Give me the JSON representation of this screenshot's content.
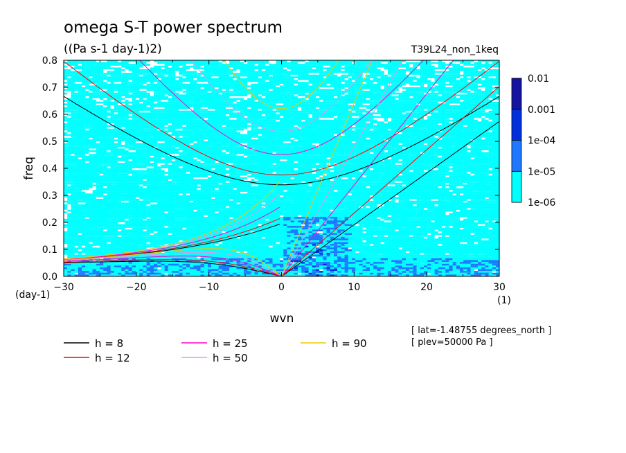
{
  "chart_data": {
    "type": "heatmap",
    "title": "omega S-T power spectrum",
    "subtitle": "((Pa s-1 day-1)2)",
    "run_label": "T39L24_non_1keq",
    "xlabel": "wvn",
    "ylabel": "freq",
    "x_unit": "(1)",
    "y_unit": "(day-1)",
    "xlim": [
      -30,
      30
    ],
    "ylim": [
      0,
      0.8
    ],
    "xticks": [
      -30,
      -20,
      -10,
      0,
      10,
      20,
      30
    ],
    "yticks": [
      0.0,
      0.1,
      0.2,
      0.3,
      0.4,
      0.5,
      0.6,
      0.7,
      0.8
    ],
    "colorbar": {
      "levels": [
        "1e-06",
        "1e-05",
        "1e-04",
        "0.001",
        "0.01"
      ],
      "colors": [
        "#00ffff",
        "#1e78ff",
        "#0030dc",
        "#1414a0"
      ]
    },
    "dispersion_curves": [
      {
        "name": "h =  8",
        "equivalent_depth": 8,
        "color": "#000000"
      },
      {
        "name": "h = 12",
        "equivalent_depth": 12,
        "color": "#ff0000"
      },
      {
        "name": "h = 25",
        "equivalent_depth": 25,
        "color": "#ff00c8"
      },
      {
        "name": "h = 50",
        "equivalent_depth": 50,
        "color": "#e696e6"
      },
      {
        "name": "h = 90",
        "equivalent_depth": 90,
        "color": "#f0c800"
      }
    ],
    "info_lines": [
      "[ lat=-1.48755 degrees_north ]",
      "[ plev=50000 Pa ]"
    ]
  }
}
